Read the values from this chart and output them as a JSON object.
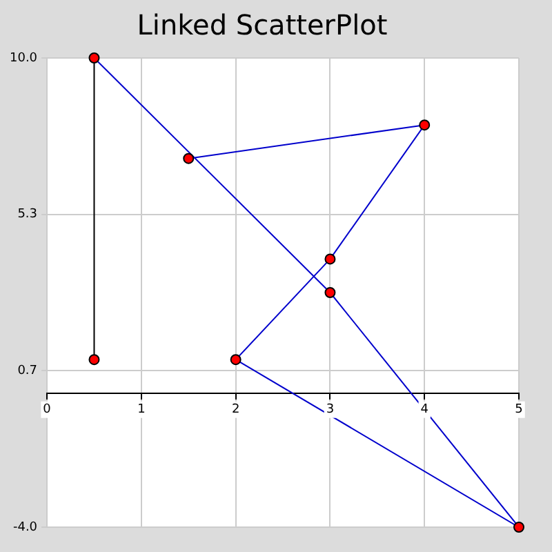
{
  "chart_data": {
    "type": "scatter",
    "title": "Linked ScatterPlot",
    "xlim": [
      0,
      5
    ],
    "xticks": [
      0,
      1,
      2,
      3,
      4,
      5
    ],
    "ylim": [
      -4,
      10
    ],
    "yticks": [
      {
        "value": -4,
        "label": "-4.0"
      },
      {
        "value": 0.667,
        "label": "0.7"
      },
      {
        "value": 5.333,
        "label": "5.3"
      },
      {
        "value": 10,
        "label": "10.0"
      }
    ],
    "grid": true,
    "legend": false,
    "series": [
      {
        "type": "line",
        "color": "#000000",
        "marker": "none",
        "x": [
          0.5,
          0.5
        ],
        "values": [
          1,
          10
        ]
      },
      {
        "type": "line",
        "color": "#0000cc",
        "marker": "none",
        "x": [
          0.5,
          3,
          5,
          2,
          3,
          4,
          1.5
        ],
        "values": [
          10,
          3,
          -4,
          1,
          4,
          8,
          7
        ]
      },
      {
        "type": "scatter",
        "color": "#ff0000",
        "marker": "circle",
        "x": [
          0.5,
          0.5,
          3,
          5,
          2,
          3,
          4,
          1.5
        ],
        "values": [
          1,
          10,
          3,
          -4,
          1,
          4,
          8,
          7
        ]
      }
    ]
  }
}
